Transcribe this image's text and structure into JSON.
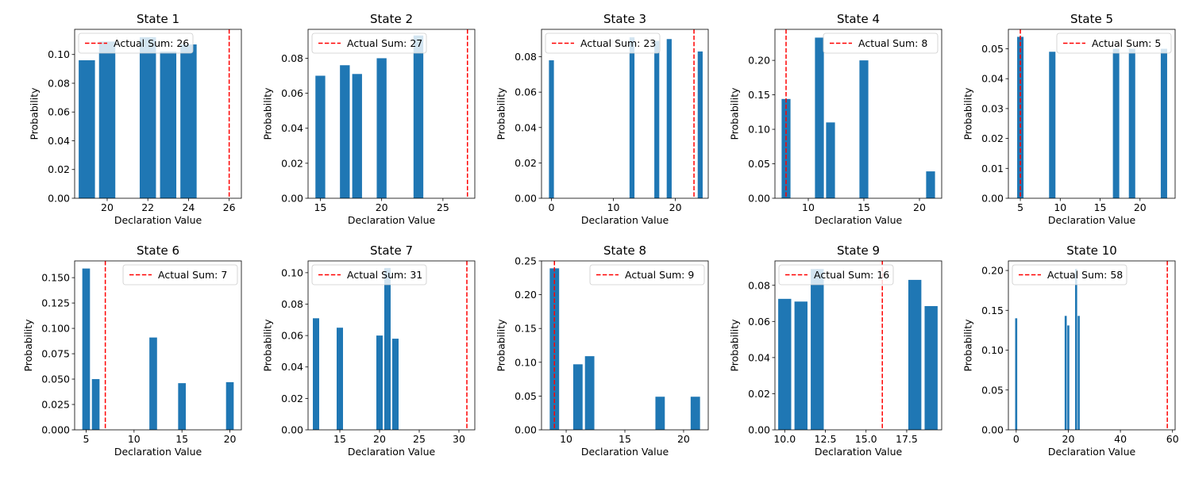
{
  "figure": {
    "background": "#ffffff",
    "bar_color": "#1f77b4",
    "line_color": "#ff0000"
  },
  "chart_data": [
    {
      "type": "bar",
      "title": "State 1",
      "xlabel": "Declaration Value",
      "ylabel": "Probability",
      "legend": "Actual Sum: 26",
      "legend_loc": "upper-left",
      "actual_sum": 26,
      "xlim": [
        18.4,
        26.6
      ],
      "ylim": [
        0,
        0.1175
      ],
      "bar_width": 0.8,
      "xticks": [
        20,
        22,
        24,
        26
      ],
      "xtick_labels": [
        "20",
        "22",
        "24",
        "26"
      ],
      "yticks": [
        0,
        0.02,
        0.04,
        0.06,
        0.08,
        0.1
      ],
      "ytick_labels": [
        "0.00",
        "0.02",
        "0.04",
        "0.06",
        "0.08",
        "0.10"
      ],
      "x": [
        19,
        20,
        22,
        23,
        24
      ],
      "values": [
        0.096,
        0.109,
        0.112,
        0.102,
        0.107
      ]
    },
    {
      "type": "bar",
      "title": "State 2",
      "xlabel": "Declaration Value",
      "ylabel": "Probability",
      "legend": "Actual Sum: 27",
      "legend_loc": "upper-left",
      "actual_sum": 27,
      "xlim": [
        14.0,
        27.6
      ],
      "ylim": [
        0,
        0.0965
      ],
      "bar_width": 0.8,
      "xticks": [
        15,
        20,
        25
      ],
      "xtick_labels": [
        "15",
        "20",
        "25"
      ],
      "yticks": [
        0,
        0.02,
        0.04,
        0.06,
        0.08
      ],
      "ytick_labels": [
        "0.00",
        "0.02",
        "0.04",
        "0.06",
        "0.08"
      ],
      "x": [
        15,
        17,
        18,
        20,
        23
      ],
      "values": [
        0.07,
        0.076,
        0.071,
        0.08,
        0.093
      ]
    },
    {
      "type": "bar",
      "title": "State 3",
      "xlabel": "Declaration Value",
      "ylabel": "Probability",
      "legend": "Actual Sum: 23",
      "legend_loc": "upper-left",
      "actual_sum": 23,
      "xlim": [
        -1.6,
        25.3
      ],
      "ylim": [
        0,
        0.0955
      ],
      "bar_width": 0.8,
      "xticks": [
        0,
        10,
        20
      ],
      "xtick_labels": [
        "0",
        "10",
        "20"
      ],
      "yticks": [
        0,
        0.02,
        0.04,
        0.06,
        0.08
      ],
      "ytick_labels": [
        "0.00",
        "0.02",
        "0.04",
        "0.06",
        "0.08"
      ],
      "x": [
        0,
        13,
        17,
        19,
        24
      ],
      "values": [
        0.078,
        0.091,
        0.089,
        0.09,
        0.083
      ]
    },
    {
      "type": "bar",
      "title": "State 4",
      "xlabel": "Declaration Value",
      "ylabel": "Probability",
      "legend": "Actual Sum: 8",
      "legend_loc": "upper-right",
      "actual_sum": 8,
      "xlim": [
        7.0,
        22.0
      ],
      "ylim": [
        0,
        0.245
      ],
      "bar_width": 0.8,
      "xticks": [
        10,
        15,
        20
      ],
      "xtick_labels": [
        "10",
        "15",
        "20"
      ],
      "yticks": [
        0,
        0.05,
        0.1,
        0.15,
        0.2
      ],
      "ytick_labels": [
        "0.00",
        "0.05",
        "0.10",
        "0.15",
        "0.20"
      ],
      "x": [
        8,
        11,
        12,
        15,
        21
      ],
      "values": [
        0.144,
        0.233,
        0.11,
        0.2,
        0.039
      ]
    },
    {
      "type": "bar",
      "title": "State 5",
      "xlabel": "Declaration Value",
      "ylabel": "Probability",
      "legend": "Actual Sum: 5",
      "legend_loc": "upper-right",
      "actual_sum": 5,
      "xlim": [
        3.5,
        24.4
      ],
      "ylim": [
        0,
        0.0565
      ],
      "bar_width": 0.8,
      "xticks": [
        5,
        10,
        15,
        20
      ],
      "xtick_labels": [
        "5",
        "10",
        "15",
        "20"
      ],
      "yticks": [
        0,
        0.01,
        0.02,
        0.03,
        0.04,
        0.05
      ],
      "ytick_labels": [
        "0.00",
        "0.01",
        "0.02",
        "0.03",
        "0.04",
        "0.05"
      ],
      "x": [
        5,
        9,
        17,
        19,
        23
      ],
      "values": [
        0.054,
        0.049,
        0.05,
        0.05,
        0.05
      ]
    },
    {
      "type": "bar",
      "title": "State 6",
      "xlabel": "Declaration Value",
      "ylabel": "Probability",
      "legend": "Actual Sum: 7",
      "legend_loc": "upper-right",
      "actual_sum": 7,
      "xlim": [
        3.8,
        21.2
      ],
      "ylim": [
        0,
        0.1665
      ],
      "bar_width": 0.8,
      "xticks": [
        5,
        10,
        15,
        20
      ],
      "xtick_labels": [
        "5",
        "10",
        "15",
        "20"
      ],
      "yticks": [
        0,
        0.025,
        0.05,
        0.075,
        0.1,
        0.125,
        0.15
      ],
      "ytick_labels": [
        "0.000",
        "0.025",
        "0.050",
        "0.075",
        "0.100",
        "0.125",
        "0.150"
      ],
      "x": [
        5,
        6,
        12,
        15,
        20
      ],
      "values": [
        0.159,
        0.05,
        0.091,
        0.046,
        0.047
      ]
    },
    {
      "type": "bar",
      "title": "State 7",
      "xlabel": "Declaration Value",
      "ylabel": "Probability",
      "legend": "Actual Sum: 31",
      "legend_loc": "upper-left",
      "actual_sum": 31,
      "xlim": [
        11.0,
        32.0
      ],
      "ylim": [
        0,
        0.1075
      ],
      "bar_width": 0.8,
      "xticks": [
        15,
        20,
        25,
        30
      ],
      "xtick_labels": [
        "15",
        "20",
        "25",
        "30"
      ],
      "yticks": [
        0,
        0.02,
        0.04,
        0.06,
        0.08,
        0.1
      ],
      "ytick_labels": [
        "0.00",
        "0.02",
        "0.04",
        "0.06",
        "0.08",
        "0.10"
      ],
      "x": [
        12,
        15,
        20,
        21,
        22
      ],
      "values": [
        0.071,
        0.065,
        0.06,
        0.103,
        0.058
      ]
    },
    {
      "type": "bar",
      "title": "State 8",
      "xlabel": "Declaration Value",
      "ylabel": "Probability",
      "legend": "Actual Sum: 9",
      "legend_loc": "upper-right",
      "actual_sum": 9,
      "xlim": [
        7.9,
        22.1
      ],
      "ylim": [
        0,
        0.25
      ],
      "bar_width": 0.8,
      "xticks": [
        10,
        15,
        20
      ],
      "xtick_labels": [
        "10",
        "15",
        "20"
      ],
      "yticks": [
        0,
        0.05,
        0.1,
        0.15,
        0.2,
        0.25
      ],
      "ytick_labels": [
        "0.00",
        "0.05",
        "0.10",
        "0.15",
        "0.20",
        "0.25"
      ],
      "x": [
        9,
        11,
        12,
        18,
        21
      ],
      "values": [
        0.239,
        0.097,
        0.109,
        0.049,
        0.049
      ]
    },
    {
      "type": "bar",
      "title": "State 9",
      "xlabel": "Declaration Value",
      "ylabel": "Probability",
      "legend": "Actual Sum: 16",
      "legend_loc": "upper-left",
      "actual_sum": 16,
      "xlim": [
        9.4,
        19.65
      ],
      "ylim": [
        0,
        0.0935
      ],
      "bar_width": 0.8,
      "xticks": [
        10.0,
        12.5,
        15.0,
        17.5
      ],
      "xtick_labels": [
        "10.0",
        "12.5",
        "15.0",
        "17.5"
      ],
      "yticks": [
        0,
        0.02,
        0.04,
        0.06,
        0.08
      ],
      "ytick_labels": [
        "0.00",
        "0.02",
        "0.04",
        "0.06",
        "0.08"
      ],
      "x": [
        10,
        11,
        12,
        18,
        19
      ],
      "values": [
        0.0725,
        0.071,
        0.089,
        0.083,
        0.0685
      ]
    },
    {
      "type": "bar",
      "title": "State 10",
      "xlabel": "Declaration Value",
      "ylabel": "Probability",
      "legend": "Actual Sum: 58",
      "legend_loc": "upper-left",
      "actual_sum": 58,
      "xlim": [
        -3.0,
        61.0
      ],
      "ylim": [
        0,
        0.212
      ],
      "bar_width": 0.8,
      "xticks": [
        0,
        20,
        40,
        60
      ],
      "xtick_labels": [
        "0",
        "20",
        "40",
        "60"
      ],
      "yticks": [
        0,
        0.05,
        0.1,
        0.15,
        0.2
      ],
      "ytick_labels": [
        "0.00",
        "0.05",
        "0.10",
        "0.15",
        "0.20"
      ],
      "x": [
        0,
        19,
        20,
        23,
        24
      ],
      "values": [
        0.14,
        0.143,
        0.131,
        0.202,
        0.143
      ]
    }
  ]
}
